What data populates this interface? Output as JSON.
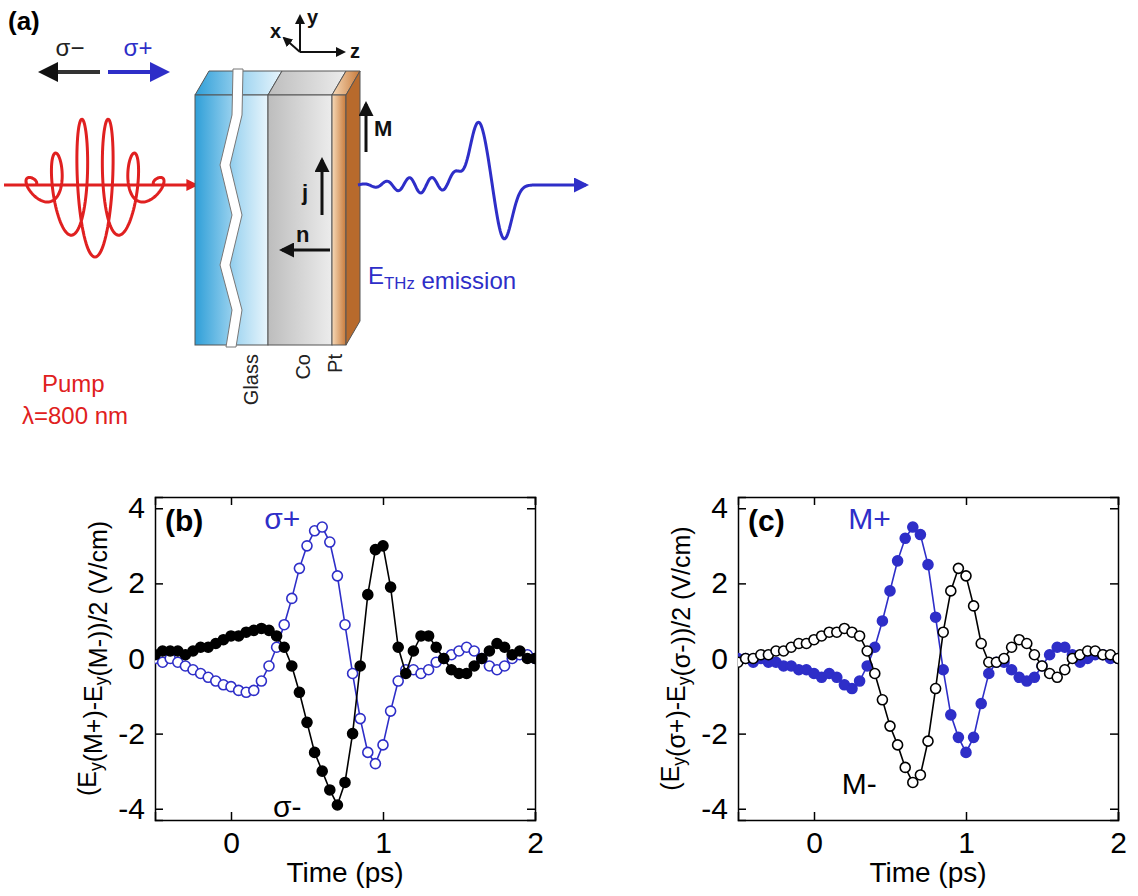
{
  "diagram": {
    "panel": "(a)",
    "polarizations": [
      "σ−",
      "σ+"
    ],
    "axes": [
      "y",
      "x",
      "z"
    ],
    "vectors": [
      "M",
      "j",
      "n"
    ],
    "layers": [
      "Glass",
      "Co",
      "Pt"
    ],
    "pump": {
      "label": "Pump",
      "wavelength": "λ=800 nm"
    },
    "emission": "ETHz emission"
  },
  "chart_data": [
    {
      "type": "line",
      "title": "(b)",
      "x_label": "Time (ps)",
      "y_label": "(Ey(M+)-Ey(M-))/2 (V/cm)",
      "x": [
        -0.5,
        -0.45,
        -0.4,
        -0.35,
        -0.3,
        -0.25,
        -0.2,
        -0.15,
        -0.1,
        -0.05,
        0,
        0.05,
        0.1,
        0.15,
        0.2,
        0.25,
        0.3,
        0.35,
        0.4,
        0.45,
        0.5,
        0.55,
        0.6,
        0.65,
        0.7,
        0.75,
        0.8,
        0.85,
        0.9,
        0.95,
        1.0,
        1.05,
        1.1,
        1.15,
        1.2,
        1.25,
        1.3,
        1.35,
        1.4,
        1.45,
        1.5,
        1.55,
        1.6,
        1.65,
        1.7,
        1.75,
        1.8,
        1.85,
        1.9,
        1.95,
        2.0
      ],
      "series": [
        {
          "name": "σ+",
          "color": "#2e2ec8",
          "marker": "open-circle",
          "line_style": "solid",
          "values": [
            0,
            -0.1,
            0,
            -0.1,
            -0.2,
            -0.3,
            -0.4,
            -0.5,
            -0.6,
            -0.7,
            -0.75,
            -0.85,
            -0.9,
            -0.85,
            -0.6,
            -0.2,
            0.3,
            0.9,
            1.6,
            2.4,
            3.0,
            3.4,
            3.5,
            3.1,
            2.2,
            0.9,
            -0.4,
            -1.6,
            -2.5,
            -2.8,
            -2.3,
            -1.4,
            -0.6,
            -0.3,
            -0.3,
            -0.4,
            -0.3,
            -0.1,
            0,
            0.1,
            0.2,
            0.3,
            0.2,
            0,
            -0.2,
            -0.3,
            -0.2,
            0,
            0.1,
            0.1,
            0
          ]
        },
        {
          "name": "σ-",
          "color": "#000000",
          "marker": "filled-circle",
          "line_style": "solid",
          "values": [
            0.1,
            0.2,
            0.2,
            0.2,
            0.1,
            0.2,
            0.3,
            0.3,
            0.4,
            0.5,
            0.6,
            0.6,
            0.7,
            0.75,
            0.8,
            0.75,
            0.6,
            0.3,
            -0.2,
            -0.9,
            -1.7,
            -2.5,
            -3.0,
            -3.5,
            -3.9,
            -3.3,
            -2.0,
            -0.2,
            1.7,
            2.9,
            3.0,
            1.9,
            0.3,
            -0.4,
            0.2,
            0.6,
            0.6,
            0.3,
            0,
            -0.3,
            -0.4,
            -0.4,
            -0.2,
            0,
            0.2,
            0.4,
            0.3,
            0.1,
            0.2,
            0,
            0
          ]
        }
      ],
      "xlim": [
        -0.5,
        2
      ],
      "ylim": [
        -4.3,
        4.3
      ],
      "xticks": [
        0,
        1,
        2
      ],
      "yticks": [
        -4,
        -2,
        0,
        2,
        4
      ]
    },
    {
      "type": "line",
      "title": "(c)",
      "x_label": "Time (ps)",
      "y_label": "(Ey(σ+)-Ey(σ-))/2 (V/cm)",
      "x": [
        -0.5,
        -0.45,
        -0.4,
        -0.35,
        -0.3,
        -0.25,
        -0.2,
        -0.15,
        -0.1,
        -0.05,
        0,
        0.05,
        0.1,
        0.15,
        0.2,
        0.25,
        0.3,
        0.35,
        0.4,
        0.45,
        0.5,
        0.55,
        0.6,
        0.65,
        0.7,
        0.75,
        0.8,
        0.85,
        0.9,
        0.95,
        1.0,
        1.05,
        1.1,
        1.15,
        1.2,
        1.25,
        1.3,
        1.35,
        1.4,
        1.45,
        1.5,
        1.55,
        1.6,
        1.65,
        1.7,
        1.75,
        1.8,
        1.85,
        1.9,
        1.95,
        2.0
      ],
      "series": [
        {
          "name": "M+",
          "color": "#2e2ec8",
          "marker": "filled-circle",
          "line_style": "solid",
          "values": [
            0,
            0,
            -0.1,
            0,
            -0.1,
            -0.1,
            -0.2,
            -0.2,
            -0.3,
            -0.3,
            -0.4,
            -0.5,
            -0.4,
            -0.5,
            -0.7,
            -0.8,
            -0.6,
            -0.2,
            0.3,
            1.0,
            1.8,
            2.6,
            3.2,
            3.5,
            3.3,
            2.5,
            1.1,
            -0.3,
            -1.5,
            -2.1,
            -2.5,
            -2.1,
            -1.2,
            -0.4,
            -0.1,
            -0.1,
            -0.3,
            -0.5,
            -0.6,
            -0.5,
            -0.2,
            0.1,
            0.3,
            0.3,
            0.1,
            -0.1,
            0,
            0.1,
            0.1,
            0,
            0
          ]
        },
        {
          "name": "M-",
          "color": "#000000",
          "marker": "open-circle",
          "line_style": "solid",
          "values": [
            -0.1,
            0,
            0,
            0.1,
            0.1,
            0.2,
            0.2,
            0.3,
            0.4,
            0.4,
            0.5,
            0.6,
            0.7,
            0.7,
            0.8,
            0.7,
            0.6,
            0.2,
            -0.4,
            -1.1,
            -1.8,
            -2.3,
            -2.9,
            -3.3,
            -3.1,
            -2.2,
            -0.8,
            0.7,
            1.8,
            2.4,
            2.2,
            1.4,
            0.4,
            -0.1,
            -0.1,
            0,
            0.3,
            0.5,
            0.4,
            0.1,
            -0.2,
            -0.4,
            -0.5,
            -0.3,
            0,
            0.1,
            0.2,
            0.2,
            0.1,
            0.1,
            0
          ]
        }
      ],
      "xlim": [
        -0.5,
        2
      ],
      "ylim": [
        -4.3,
        4.3
      ],
      "xticks": [
        0,
        1,
        2
      ],
      "yticks": [
        -4,
        -2,
        0,
        2,
        4
      ]
    }
  ]
}
